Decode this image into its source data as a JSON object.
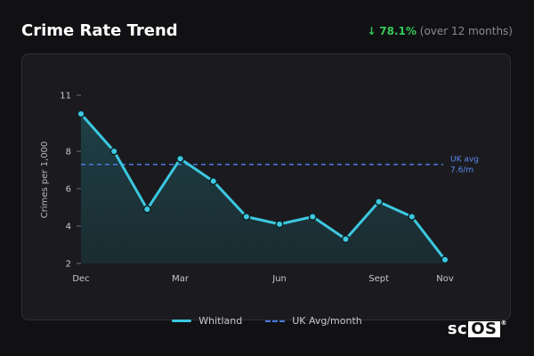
{
  "header": {
    "title": "Crime Rate Trend",
    "change_arrow": "↓",
    "change_pct": "78.1%",
    "change_period": "(over 12 months)"
  },
  "chart_data": {
    "type": "line",
    "ylabel": "Crimes per 1,000",
    "x_ticks": [
      "Dec",
      "Mar",
      "Jun",
      "Sept",
      "Nov"
    ],
    "y_ticks": [
      "2",
      "4",
      "6",
      "8",
      "11"
    ],
    "ylim": [
      2,
      11
    ],
    "series": [
      {
        "name": "Whitland",
        "color": "#3cc8e0",
        "values": [
          10.0,
          8.0,
          4.9,
          7.6,
          6.4,
          4.5,
          4.1,
          4.5,
          3.3,
          5.3,
          4.5,
          2.2
        ]
      }
    ],
    "reference_line": {
      "name": "UK Avg/month",
      "value": 7.6,
      "color": "#4a78e0",
      "label_line1": "UK avg",
      "label_line2": "7.6/m"
    },
    "grid": false,
    "legend_position": "bottom"
  },
  "legend": {
    "series_label": "Whitland",
    "reference_label": "UK Avg/month"
  },
  "branding": {
    "logo_text_a": "sc",
    "logo_text_b": "OS",
    "logo_reg": "®"
  }
}
